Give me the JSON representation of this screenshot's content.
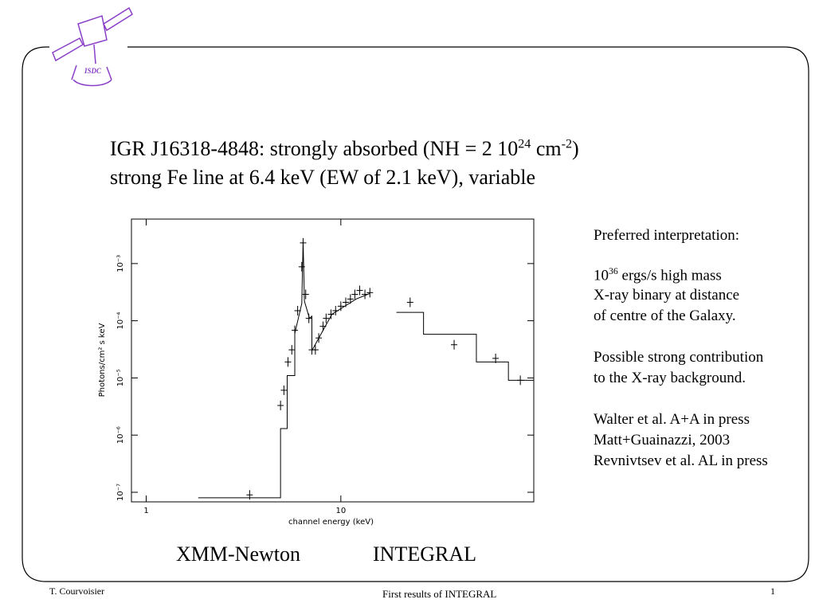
{
  "logo": "ISDC",
  "title": {
    "line1": {
      "pre": "IGR J16318-4848: strongly absorbed (NH = 2 10",
      "sup1": "24",
      "mid": " cm",
      "sup2": "-2",
      "post": ")"
    },
    "line2": "strong Fe line at 6.4 keV (EW of 2.1 keV), variable"
  },
  "notes": {
    "p0": "Preferred interpretation:",
    "p1": {
      "base": "10",
      "sup": "36",
      "rest": " ergs/s high mass",
      "l2": "X-ray binary at distance",
      "l3": "of centre of the Galaxy."
    },
    "p2": [
      "Possible strong contribution",
      "to the X-ray background."
    ],
    "p3": [
      "Walter et al. A+A in press",
      "Matt+Guainazzi, 2003",
      "Revnivtsev et al. AL in press"
    ]
  },
  "captions": [
    "XMM-Newton",
    "INTEGRAL"
  ],
  "footer": {
    "left": "T. Courvoisier",
    "center": "First results of INTEGRAL",
    "page": 1
  },
  "chart_data": {
    "type": "scatter",
    "xlabel": "channel energy (keV)",
    "ylabel": "Photons/cm² s keV",
    "xscale": "log",
    "yscale": "log",
    "xlim": [
      0.84,
      98
    ],
    "ylim": [
      6.8e-08,
      0.006
    ],
    "xticks": [
      1,
      10
    ],
    "yticks": [
      {
        "value": 1e-07,
        "label": "10⁻⁷"
      },
      {
        "value": 1e-06,
        "label": "10⁻⁶"
      },
      {
        "value": 1e-05,
        "label": "10⁻⁵"
      },
      {
        "value": 0.0001,
        "label": "10⁻⁴"
      },
      {
        "value": 0.001,
        "label": "10⁻³"
      }
    ],
    "color": "#000000",
    "series": [
      {
        "style": "cross",
        "x": [
          3.4,
          4.9,
          5.1,
          5.35,
          5.6,
          5.8,
          6.0,
          6.3,
          6.4,
          6.6,
          6.85,
          7.1,
          7.4,
          7.7,
          8.1,
          8.4,
          8.9,
          9.4,
          10,
          10.6,
          11.2,
          11.8,
          12.5,
          13.3,
          14.1
        ],
        "y": [
          9e-08,
          3.3e-06,
          6.1e-06,
          1.9e-05,
          3.1e-05,
          6.8e-05,
          0.00015,
          0.00088,
          0.0023,
          0.00029,
          0.00011,
          3.1e-05,
          3.1e-05,
          5e-05,
          8e-05,
          0.00011,
          0.00013,
          0.00015,
          0.00018,
          0.00021,
          0.00024,
          0.00029,
          0.00034,
          0.00029,
          0.00031
        ]
      },
      {
        "style": "step",
        "x": [
          1.85,
          4.9,
          4.9,
          5.3,
          5.3,
          5.8,
          5.8,
          6.3,
          6.4,
          6.5,
          6.9,
          7.1,
          7.1,
          9,
          12,
          14.1
        ],
        "y": [
          8e-08,
          8e-08,
          1.3e-06,
          1.3e-06,
          1.1e-05,
          1.1e-05,
          6e-05,
          0.0002,
          0.0025,
          0.00022,
          0.00011,
          0.00012,
          3e-05,
          0.00013,
          0.00024,
          0.0003
        ]
      },
      {
        "style": "cross",
        "x": [
          22.7,
          38.2,
          62.4,
          83.6
        ],
        "y": [
          0.00021,
          3.8e-05,
          2.2e-05,
          9.1e-06
        ]
      },
      {
        "style": "step",
        "x": [
          19.3,
          26.6,
          26.6,
          49.7,
          49.7,
          72.6,
          72.6,
          98
        ],
        "y": [
          0.00014,
          0.00014,
          5.8e-05,
          5.8e-05,
          1.9e-05,
          1.9e-05,
          9.1e-06,
          9.1e-06
        ]
      }
    ]
  }
}
